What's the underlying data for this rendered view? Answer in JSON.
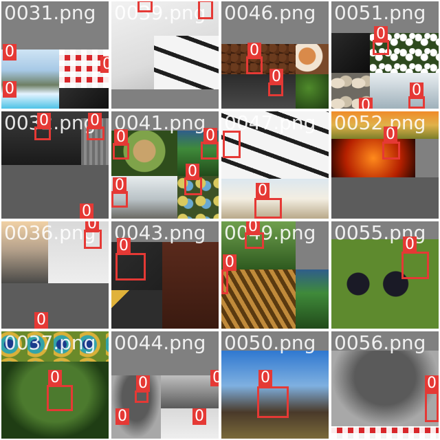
{
  "tiles": [
    {
      "label": "0031.png"
    },
    {
      "label": "0039.png"
    },
    {
      "label": "0046.png"
    },
    {
      "label": "0051.png"
    },
    {
      "label": "0032.png"
    },
    {
      "label": "0041.png"
    },
    {
      "label": "0047.png"
    },
    {
      "label": "0052.png"
    },
    {
      "label": "0036.png"
    },
    {
      "label": "0043.png"
    },
    {
      "label": "0049.png"
    },
    {
      "label": "0055.png"
    },
    {
      "label": "0037.png"
    },
    {
      "label": "0044.png"
    },
    {
      "label": "0050.png"
    },
    {
      "label": "0056.png"
    }
  ],
  "detection_tag": "0",
  "colors": {
    "box": "#e53935",
    "background": "#808080"
  }
}
